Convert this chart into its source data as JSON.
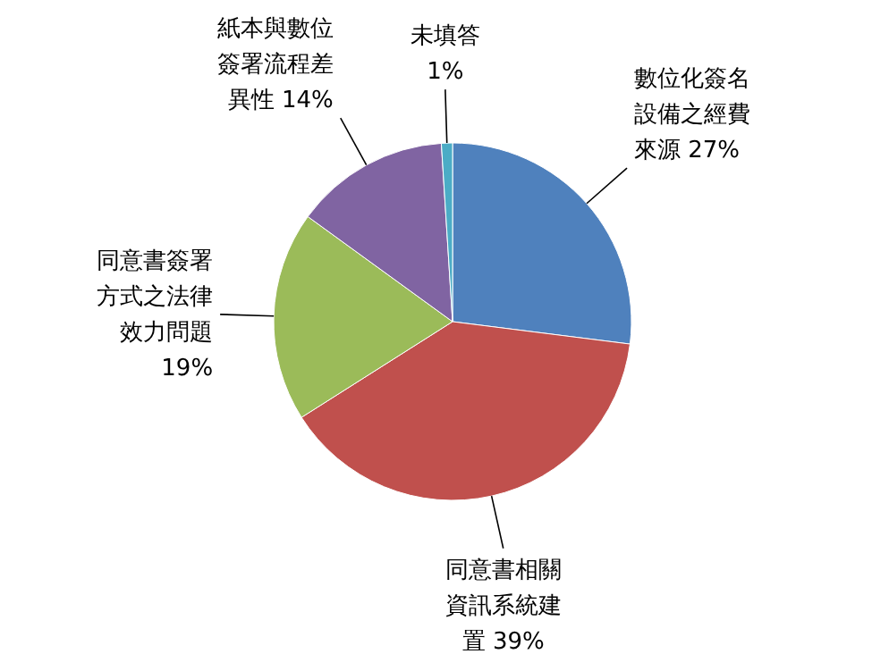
{
  "chart_data": {
    "type": "pie",
    "categories": [
      "數位化簽名設備之經費來源",
      "同意書相關資訊系統建置",
      "同意書簽署方式之法律效力問題",
      "紙本與數位簽署流程差異性",
      "未填答"
    ],
    "values": [
      27,
      39,
      19,
      14,
      1
    ],
    "value_labels": [
      "27%",
      "39%",
      "19%",
      "14%",
      "1%"
    ],
    "colors": [
      "#4f81bd",
      "#c0504d",
      "#9bbb59",
      "#8064a2",
      "#4bacc6"
    ]
  }
}
